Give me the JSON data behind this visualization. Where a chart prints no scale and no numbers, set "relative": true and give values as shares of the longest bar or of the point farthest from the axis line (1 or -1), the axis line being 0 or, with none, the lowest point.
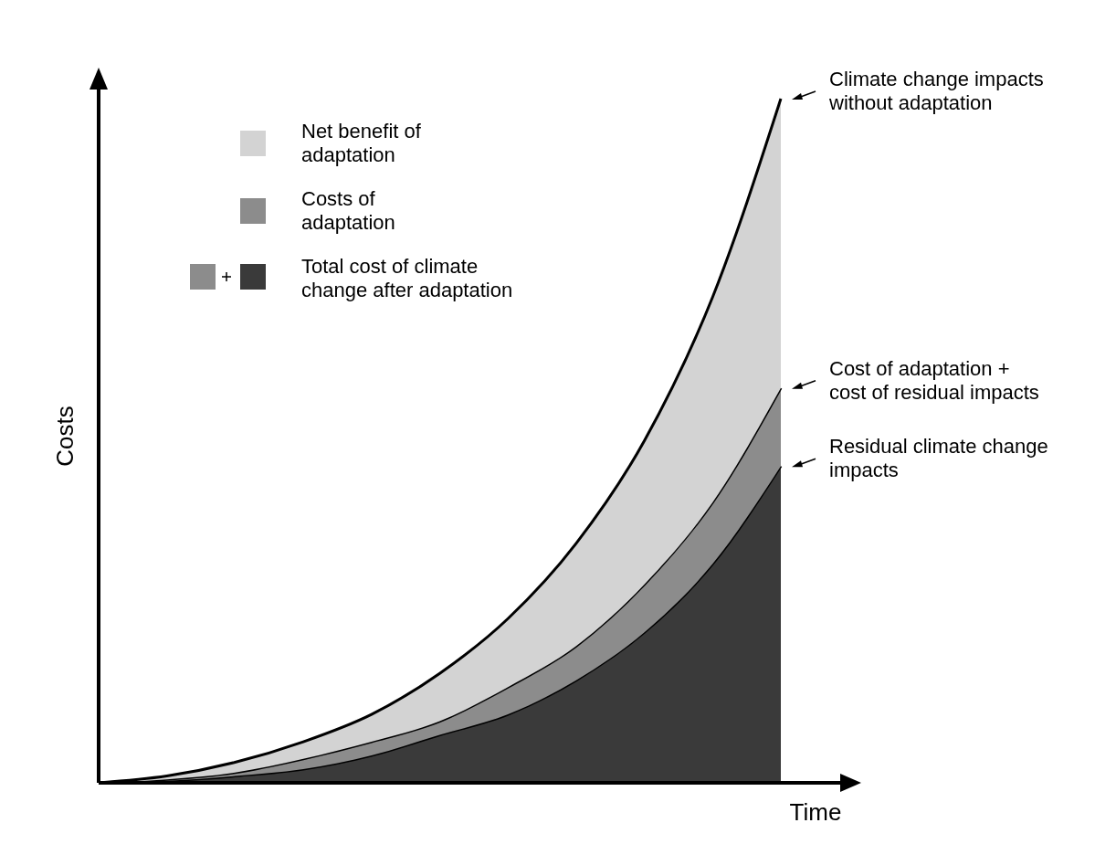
{
  "chart_data": {
    "type": "area",
    "relative": true,
    "stacked": true,
    "xlabel": "Time",
    "ylabel": "Costs",
    "legend": "top left",
    "categories": [
      null,
      null,
      null,
      null,
      null,
      null,
      null,
      null,
      null,
      null,
      null
    ],
    "series": [
      {
        "color": "#3a3a3a",
        "values": [
          0,
          0.003,
          0.01,
          0.02,
          0.04,
          0.07,
          0.1,
          0.15,
          0.22,
          0.32,
          0.463
        ]
      },
      {
        "name": "Costs of adaptation",
        "color": "#8c8c8c",
        "values": [
          0,
          0.002,
          0.005,
          0.015,
          0.02,
          0.02,
          0.04,
          0.05,
          0.07,
          0.09,
          0.114
        ]
      },
      {
        "name": "Net benefit of adaptation",
        "color": "#d3d3d3",
        "values": [
          0,
          0.005,
          0.015,
          0.025,
          0.04,
          0.07,
          0.1,
          0.15,
          0.21,
          0.3,
          0.423
        ]
      }
    ],
    "annotations": [
      "Total cost of climate change after adaptation",
      "Climate change impacts without adaptation",
      "Cost of adaptation + cost of residual impacts",
      "Residual climate change impacts"
    ]
  }
}
